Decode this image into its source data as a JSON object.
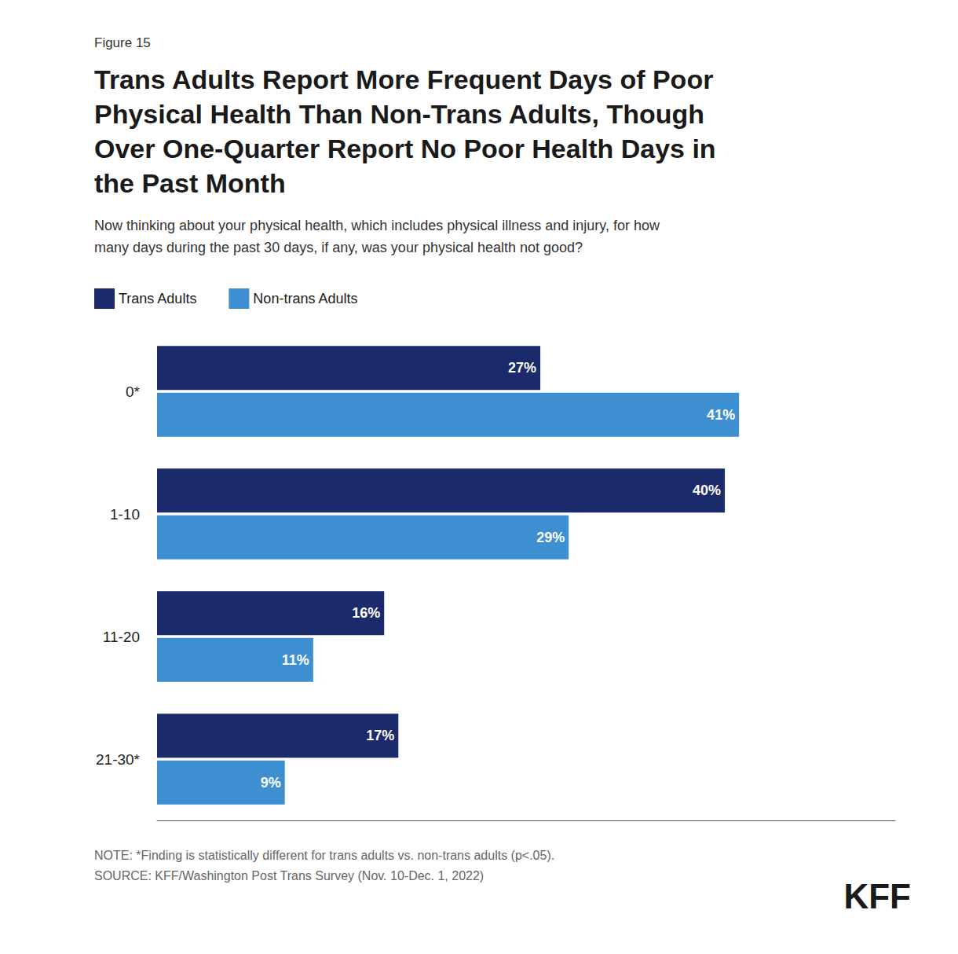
{
  "chart_data": {
    "type": "bar",
    "orientation": "horizontal",
    "title": "Trans Adults Report More Frequent Days of Poor\nPhysical Health Than Non-Trans Adults, Though\nOver One-Quarter Report No Poor Health Days in\nthe Past Month",
    "subtitle": "Now thinking about your physical health, which includes physical illness and injury, for how\nmany days during the past 30 days, if any, was your physical health not good?",
    "annotations": [
      "Figure 15",
      "NOTE: *Finding is statistically different for trans adults vs. non-trans adults (p<.05).\nSOURCE: KFF/Washington Post Trans Survey (Nov. 10-Dec. 1, 2022)",
      "KFF"
    ],
    "categories": [
      "0*",
      "1-10",
      "11-20",
      "21-30*"
    ],
    "series": [
      {
        "name": "Trans Adults",
        "color": "#1B2A6B",
        "values": [
          27,
          40,
          16,
          17
        ],
        "value_labels": [
          "27%",
          "40%",
          "16%",
          "17%"
        ]
      },
      {
        "name": "Non-trans Adults",
        "color": "#3D8FD1",
        "values": [
          41,
          29,
          11,
          9
        ],
        "value_labels": [
          "41%",
          "29%",
          "11%",
          "9%"
        ]
      }
    ],
    "xlim": [
      0,
      52
    ],
    "data_labels": true,
    "tick_labels": "y",
    "grid": false,
    "legend": "upper left"
  }
}
